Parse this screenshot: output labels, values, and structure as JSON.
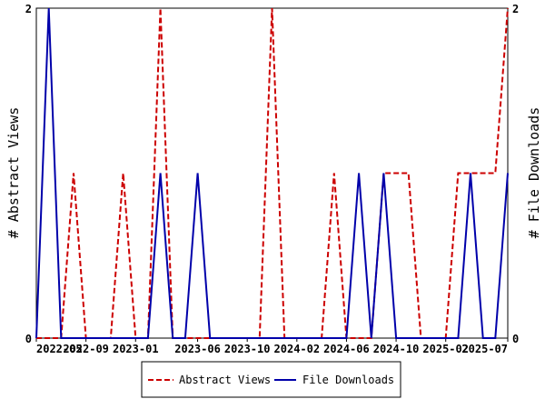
{
  "chart_data": {
    "type": "line",
    "x": [
      "2022-05",
      "2022-06",
      "2022-07",
      "2022-08",
      "2022-09",
      "2022-10",
      "2022-11",
      "2022-12",
      "2023-01",
      "2023-02",
      "2023-03",
      "2023-04",
      "2023-05",
      "2023-06",
      "2023-07",
      "2023-08",
      "2023-09",
      "2023-10",
      "2023-11",
      "2023-12",
      "2024-01",
      "2024-02",
      "2024-03",
      "2024-04",
      "2024-05",
      "2024-06",
      "2024-07",
      "2024-08",
      "2024-09",
      "2024-10",
      "2024-11",
      "2024-12",
      "2025-01",
      "2025-02",
      "2025-03",
      "2025-04",
      "2025-05",
      "2025-06",
      "2025-07"
    ],
    "x_tick_labels": [
      "2022-05",
      "2022-09",
      "2023-01",
      "2023-06",
      "2023-10",
      "2024-02",
      "2024-06",
      "2024-10",
      "2025-02",
      "2025-07"
    ],
    "series": [
      {
        "name": "Abstract Views",
        "axis": "left",
        "color": "#cc0000",
        "dash": "dashed",
        "values": [
          0,
          0,
          0,
          1,
          0,
          0,
          0,
          1,
          0,
          0,
          2,
          0,
          0,
          0,
          0,
          0,
          0,
          0,
          0,
          2,
          0,
          0,
          0,
          0,
          1,
          0,
          0,
          0,
          1,
          1,
          1,
          0,
          0,
          0,
          1,
          1,
          1,
          1,
          2
        ]
      },
      {
        "name": "File Downloads",
        "axis": "right",
        "color": "#0000aa",
        "dash": "solid",
        "values": [
          0,
          2,
          0,
          0,
          0,
          0,
          0,
          0,
          0,
          0,
          1,
          0,
          0,
          1,
          0,
          0,
          0,
          0,
          0,
          0,
          0,
          0,
          0,
          0,
          0,
          0,
          1,
          0,
          1,
          0,
          0,
          0,
          0,
          0,
          0,
          1,
          0,
          0,
          1
        ]
      }
    ],
    "ylabel_left": "# Abstract Views",
    "ylabel_right": "# File Downloads",
    "ylim_left": [
      0,
      2
    ],
    "ylim_right": [
      0,
      2
    ],
    "yticks_left": [
      "0",
      "2"
    ],
    "yticks_right": [
      "0",
      "2"
    ],
    "grid": false,
    "legend_placement": "bottom-center"
  }
}
